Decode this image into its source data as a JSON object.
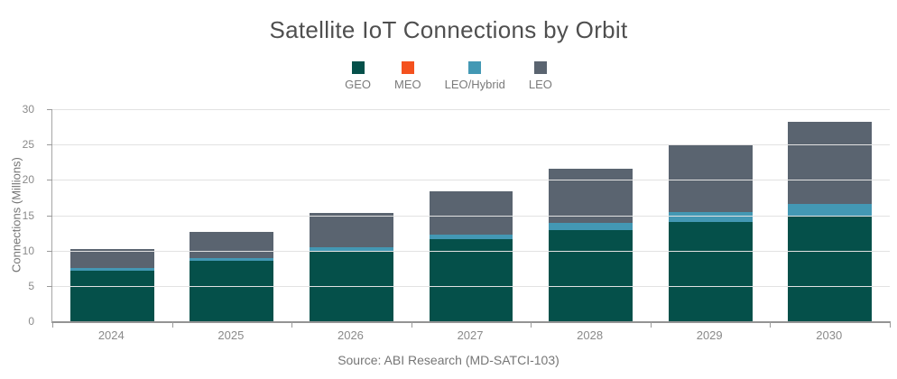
{
  "header": {
    "title": "Satellite IoT Connections by Orbit"
  },
  "axes": {
    "y_title": "Connections (Millions)"
  },
  "footer": {
    "source": "Source: ABI Research (MD-SATCI-103)"
  },
  "palette": {
    "geo": "#05504a",
    "meo": "#f4511e",
    "leo_hybrid": "#4398b4",
    "leo": "#5a6470",
    "gridline": "#e2e2e2",
    "axis_text": "#8a8a8a",
    "title_text": "#4f4f4f"
  },
  "chart_data": {
    "type": "bar",
    "stacked": true,
    "title": "Satellite IoT Connections by Orbit",
    "xlabel": "",
    "ylabel": "Connections (Millions)",
    "ylim": [
      0,
      30
    ],
    "y_tick_step": 5,
    "y_tick_labels": [
      "0",
      "5",
      "10",
      "15",
      "20",
      "25",
      "30"
    ],
    "grid": "horizontal",
    "legend_position": "top",
    "categories": [
      "2024",
      "2025",
      "2026",
      "2027",
      "2028",
      "2029",
      "2030"
    ],
    "series": [
      {
        "name": "GEO",
        "color": "#05504a",
        "values": [
          7.2,
          8.6,
          10.0,
          11.6,
          12.9,
          14.1,
          14.9
        ]
      },
      {
        "name": "MEO",
        "color": "#f4511e",
        "values": [
          0,
          0,
          0,
          0,
          0,
          0,
          0
        ]
      },
      {
        "name": "LEO/Hybrid",
        "color": "#4398b4",
        "values": [
          0.3,
          0.4,
          0.5,
          0.7,
          1.0,
          1.3,
          1.7
        ]
      },
      {
        "name": "LEO",
        "color": "#5a6470",
        "values": [
          2.7,
          3.6,
          4.8,
          6.1,
          7.7,
          9.6,
          11.6
        ]
      }
    ],
    "totals": [
      10.2,
      12.6,
      15.3,
      18.4,
      21.6,
      25.0,
      28.2
    ],
    "source": "Source: ABI Research (MD-SATCI-103)"
  }
}
